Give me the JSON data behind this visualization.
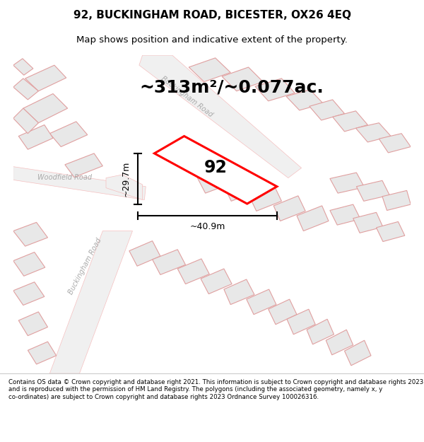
{
  "title_line1": "92, BUCKINGHAM ROAD, BICESTER, OX26 4EQ",
  "title_line2": "Map shows position and indicative extent of the property.",
  "area_text": "~313m²/~0.077ac.",
  "property_number": "92",
  "dim_width": "~40.9m",
  "dim_height": "~29.7m",
  "footer_text": "Contains OS data © Crown copyright and database right 2021. This information is subject to Crown copyright and database rights 2023 and is reproduced with the permission of HM Land Registry. The polygons (including the associated geometry, namely x, y co-ordinates) are subject to Crown copyright and database rights 2023 Ordnance Survey 100026316.",
  "map_bg": "#ffffff",
  "road_color": "#f5c0c0",
  "building_color": "#e8e8e8",
  "building_edge": "#e0a0a0",
  "property_color": "#ff0000",
  "road_label_color": "#aaaaaa",
  "dim_color": "#000000"
}
